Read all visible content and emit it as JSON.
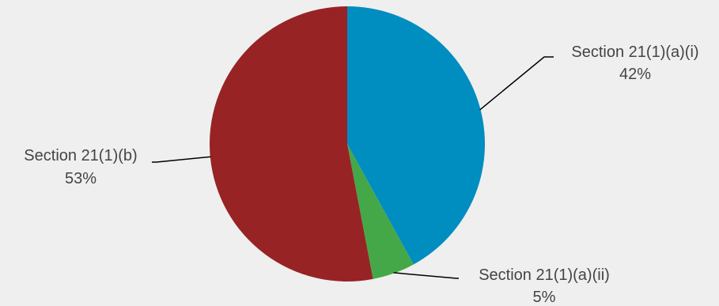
{
  "chart_data": {
    "type": "pie",
    "slices": [
      {
        "label": "Section 21(1)(a)(i)",
        "value": 42,
        "value_label": "42%",
        "color": "#008dc0"
      },
      {
        "label": "Section 21(1)(a)(ii)",
        "value": 5,
        "value_label": "5%",
        "color": "#45a848"
      },
      {
        "label": "Section 21(1)(b)",
        "value": 53,
        "value_label": "53%",
        "color": "#972325"
      }
    ],
    "start": "12 o'clock",
    "direction": "clockwise"
  },
  "colors": {
    "background": "#efefef",
    "label_text": "#444444",
    "leader_line": "#000000"
  }
}
